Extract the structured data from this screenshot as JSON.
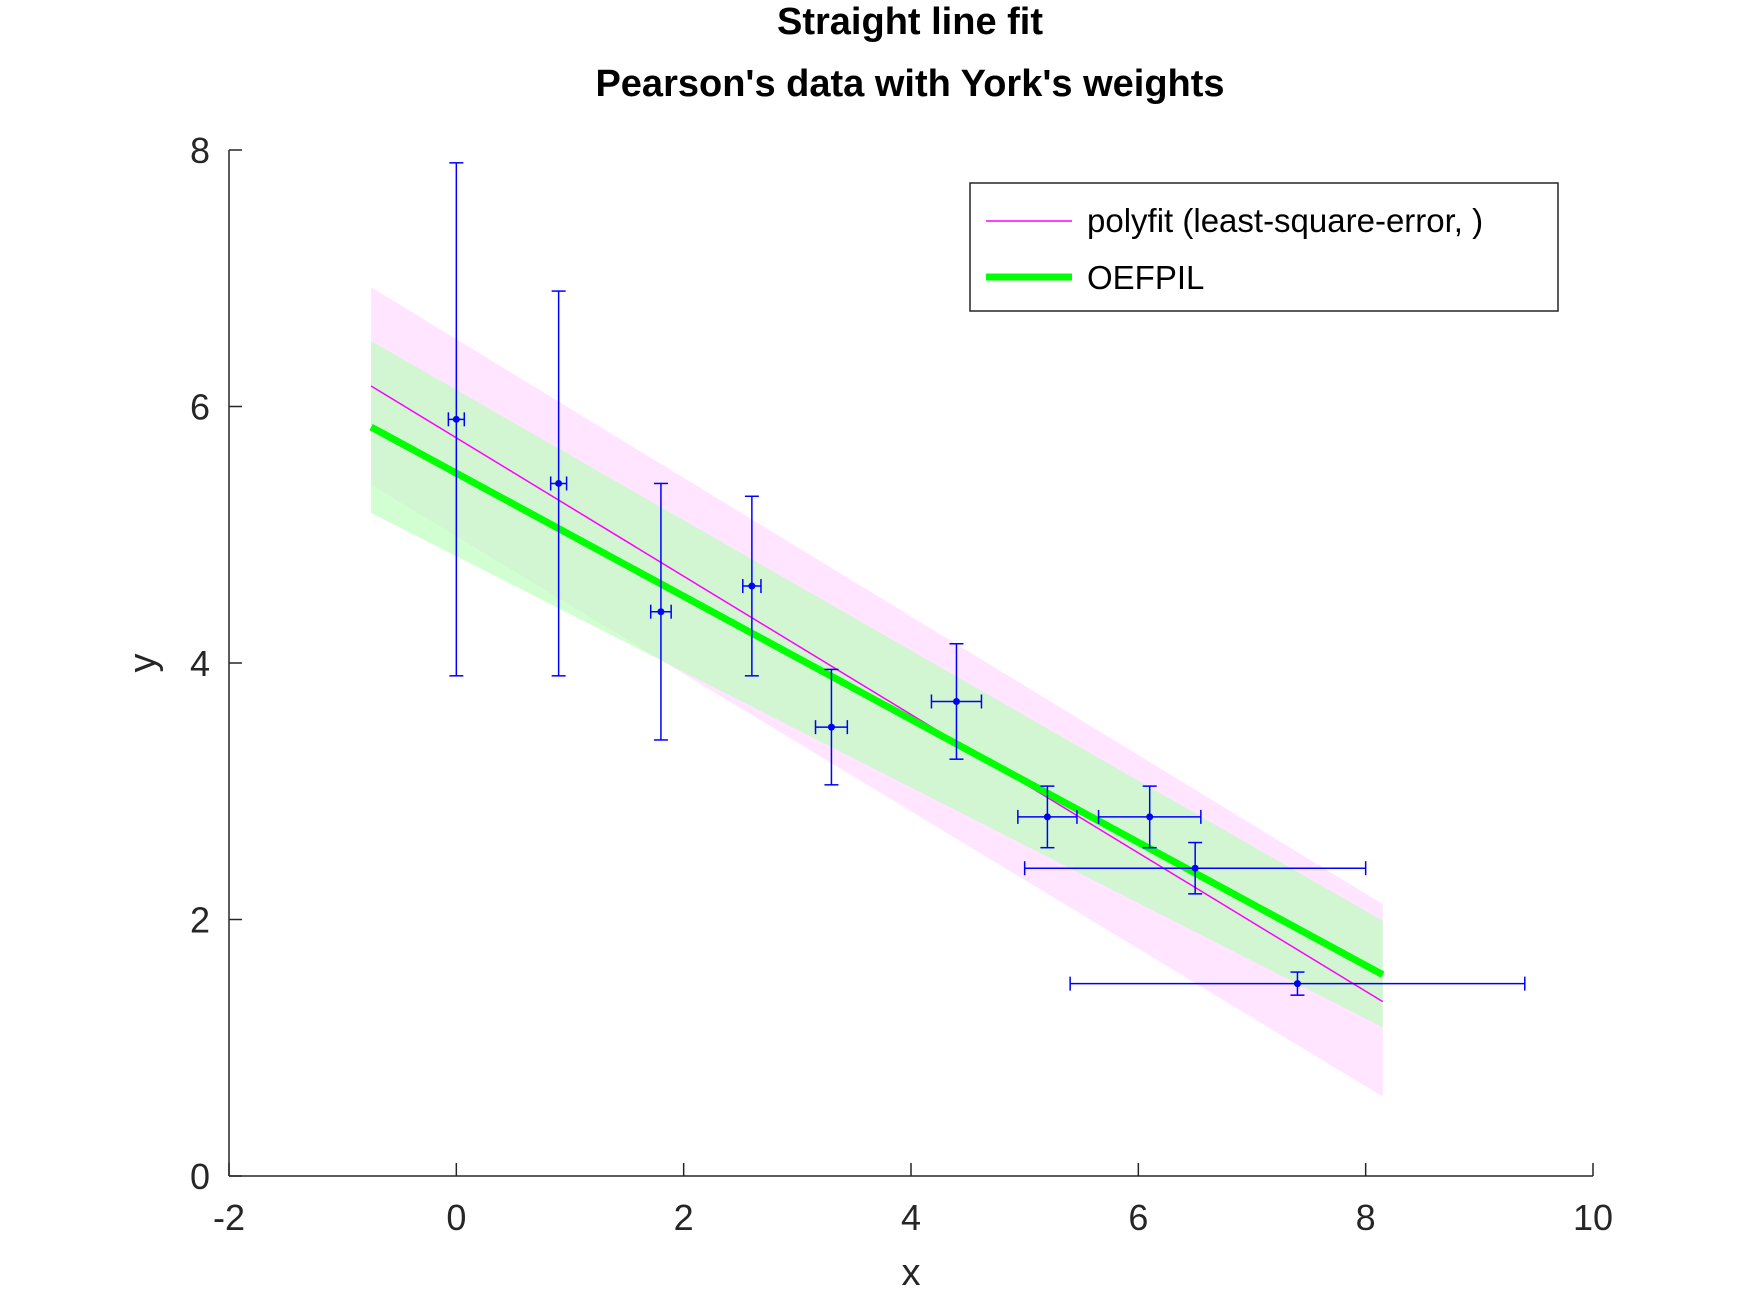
{
  "chart_data": {
    "type": "scatter",
    "title": "Straight line fit",
    "subtitle": "Pearson's data with York's weights",
    "xlabel": "x",
    "ylabel": "y",
    "xlim": [
      -2,
      10
    ],
    "ylim": [
      0,
      8
    ],
    "xticks": [
      "-2",
      "0",
      "2",
      "4",
      "6",
      "8",
      "10"
    ],
    "yticks": [
      "0",
      "2",
      "4",
      "6",
      "8"
    ],
    "grid": false,
    "legend_position": "top-right",
    "points": [
      {
        "x": 0.0,
        "y": 5.9,
        "x_err": 0.07,
        "y_err": 2.0
      },
      {
        "x": 0.9,
        "y": 5.4,
        "x_err": 0.07,
        "y_err": 1.5
      },
      {
        "x": 1.8,
        "y": 4.4,
        "x_err": 0.09,
        "y_err": 1.0
      },
      {
        "x": 2.6,
        "y": 4.6,
        "x_err": 0.08,
        "y_err": 0.7
      },
      {
        "x": 3.3,
        "y": 3.5,
        "x_err": 0.14,
        "y_err": 0.45
      },
      {
        "x": 4.4,
        "y": 3.7,
        "x_err": 0.22,
        "y_err": 0.45
      },
      {
        "x": 5.2,
        "y": 2.8,
        "x_err": 0.26,
        "y_err": 0.24
      },
      {
        "x": 6.1,
        "y": 2.8,
        "x_err": 0.45,
        "y_err": 0.24
      },
      {
        "x": 6.5,
        "y": 2.4,
        "x_err": 1.5,
        "y_err": 0.2
      },
      {
        "x": 7.4,
        "y": 1.5,
        "x_err": 2.0,
        "y_err": 0.09
      }
    ],
    "fits": [
      {
        "name": "polyfit (least-square-error, )",
        "color": "#ff00ff",
        "x_range": [
          -0.75,
          8.15
        ],
        "y_at_range": [
          6.16,
          1.36
        ],
        "band_upper": [
          6.93,
          2.12
        ],
        "band_lower": [
          5.39,
          0.62
        ],
        "band_color": "#ffdcff"
      },
      {
        "name": "OEFPIL",
        "color": "#00ff00",
        "x_range": [
          -0.75,
          8.15
        ],
        "y_at_range": [
          5.84,
          1.57
        ],
        "band_upper": [
          6.51,
          1.99
        ],
        "band_lower": [
          5.17,
          1.16
        ],
        "band_color": "#b4ffb4"
      }
    ],
    "errorbar_color": "#0000ff"
  }
}
